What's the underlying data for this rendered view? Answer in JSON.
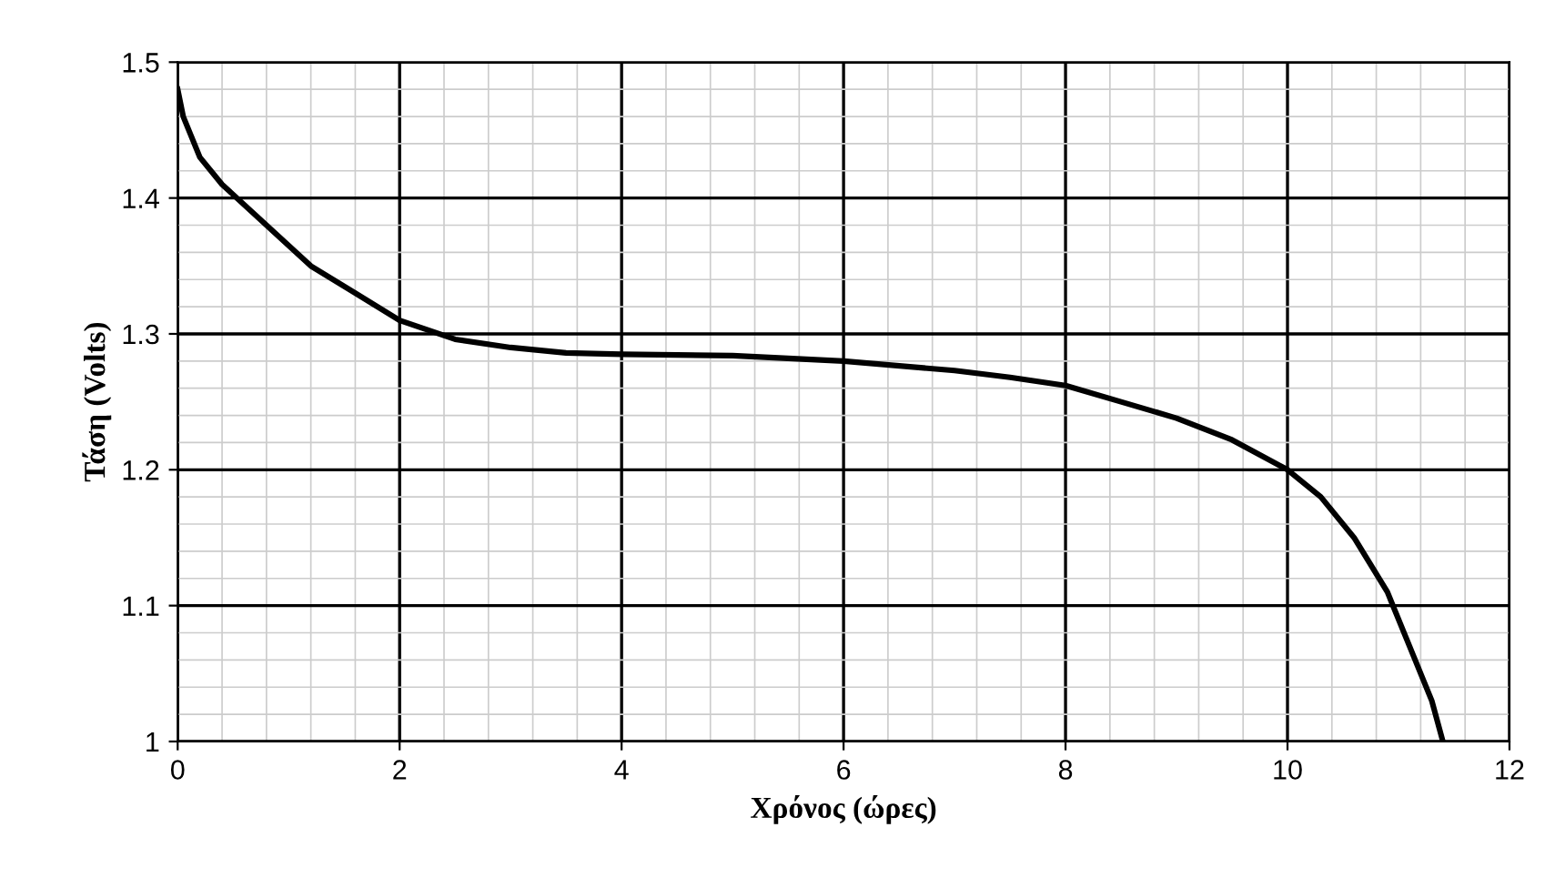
{
  "chart_data": {
    "type": "line",
    "xlabel": "Χρόνος (ώρες)",
    "ylabel": "Τάση (Volts)",
    "x": [
      0,
      0.05,
      0.2,
      0.4,
      0.8,
      1.2,
      1.6,
      2,
      2.5,
      3,
      3.5,
      4,
      5,
      6,
      7,
      7.5,
      8,
      8.5,
      9,
      9.5,
      10,
      10.3,
      10.6,
      10.9,
      11.1,
      11.3,
      11.4
    ],
    "series": [
      {
        "color": "#000000",
        "values": [
          1.48,
          1.46,
          1.43,
          1.41,
          1.38,
          1.35,
          1.33,
          1.31,
          1.296,
          1.29,
          1.286,
          1.285,
          1.284,
          1.28,
          1.273,
          1.268,
          1.262,
          1.25,
          1.238,
          1.222,
          1.2,
          1.18,
          1.15,
          1.11,
          1.07,
          1.03,
          1.0
        ]
      }
    ],
    "xlim": [
      0,
      12
    ],
    "ylim": [
      1,
      1.5
    ],
    "xticks": [
      0,
      2,
      4,
      6,
      8,
      10,
      12
    ],
    "yticks": [
      1,
      1.1,
      1.2,
      1.3,
      1.4,
      1.5
    ],
    "grid": true,
    "marker": "none",
    "line_style": "solid"
  }
}
